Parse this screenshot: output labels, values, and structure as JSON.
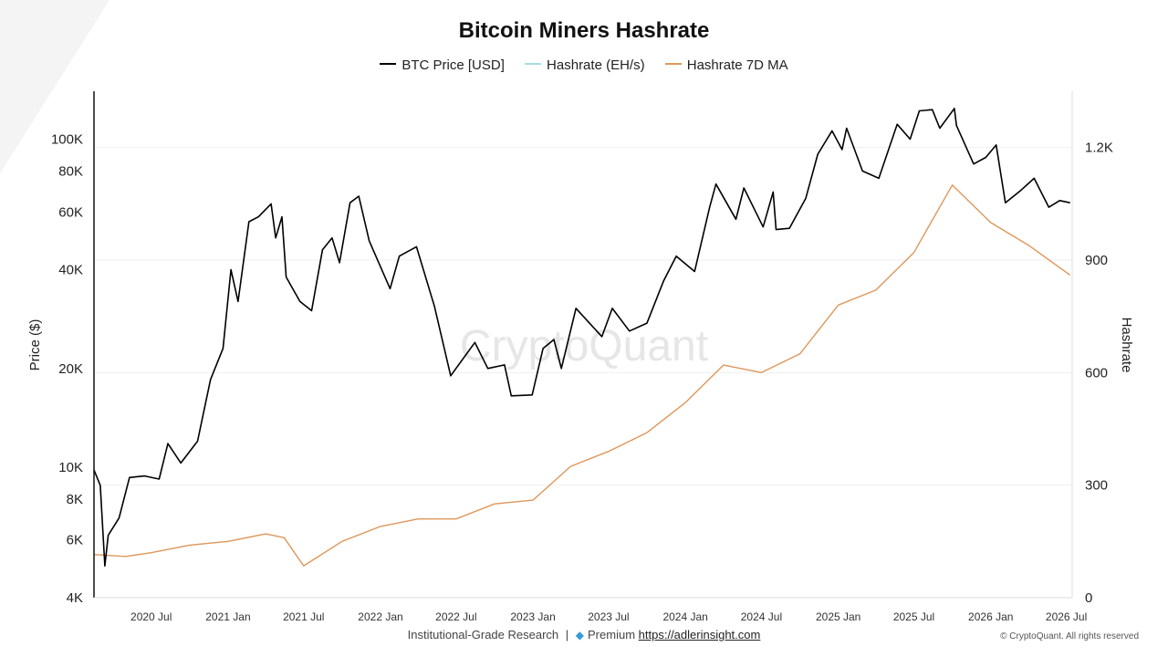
{
  "chart_data": {
    "type": "line",
    "title": "Bitcoin Miners Hashrate",
    "ylabel_left": "Price ($)",
    "ylabel_right": "Hashrate",
    "y_left_scale": "log",
    "y_left_range": [
      4000,
      140000
    ],
    "y_left_ticks": [
      {
        "v": 4000,
        "label": "4K"
      },
      {
        "v": 6000,
        "label": "6K"
      },
      {
        "v": 8000,
        "label": "8K"
      },
      {
        "v": 10000,
        "label": "10K"
      },
      {
        "v": 20000,
        "label": "20K"
      },
      {
        "v": 40000,
        "label": "40K"
      },
      {
        "v": 60000,
        "label": "60K"
      },
      {
        "v": 80000,
        "label": "80K"
      },
      {
        "v": 100000,
        "label": "100K"
      }
    ],
    "y_right_range": [
      0,
      1350
    ],
    "y_right_ticks": [
      {
        "v": 0,
        "label": "0"
      },
      {
        "v": 300,
        "label": "300"
      },
      {
        "v": 600,
        "label": "600"
      },
      {
        "v": 900,
        "label": "900"
      },
      {
        "v": 1200,
        "label": "1.2K"
      }
    ],
    "x_range": [
      "2020-02-15",
      "2026-07-15"
    ],
    "x_ticks": [
      {
        "date": "2020-07-01",
        "label": "2020 Jul"
      },
      {
        "date": "2021-01-01",
        "label": "2021 Jan"
      },
      {
        "date": "2021-07-01",
        "label": "2021 Jul"
      },
      {
        "date": "2022-01-01",
        "label": "2022 Jan"
      },
      {
        "date": "2022-07-01",
        "label": "2022 Jul"
      },
      {
        "date": "2023-01-01",
        "label": "2023 Jan"
      },
      {
        "date": "2023-07-01",
        "label": "2023 Jul"
      },
      {
        "date": "2024-01-01",
        "label": "2024 Jan"
      },
      {
        "date": "2024-07-01",
        "label": "2024 Jul"
      },
      {
        "date": "2025-01-01",
        "label": "2025 Jan"
      },
      {
        "date": "2025-07-01",
        "label": "2025 Jul"
      },
      {
        "date": "2026-01-01",
        "label": "2026 Jan"
      },
      {
        "date": "2026-07-01",
        "label": "2026 Jul"
      }
    ],
    "grid": {
      "horizontal": true,
      "vertical": false
    },
    "legend_position": "top-center",
    "series": [
      {
        "name": "BTC Price [USD]",
        "axis": "left",
        "color": "#000000",
        "points": [
          [
            "2020-02-15",
            9800
          ],
          [
            "2020-03-01",
            8800
          ],
          [
            "2020-03-12",
            5000
          ],
          [
            "2020-03-20",
            6200
          ],
          [
            "2020-04-15",
            7000
          ],
          [
            "2020-05-10",
            9300
          ],
          [
            "2020-06-15",
            9400
          ],
          [
            "2020-07-20",
            9200
          ],
          [
            "2020-08-10",
            11800
          ],
          [
            "2020-09-10",
            10300
          ],
          [
            "2020-10-20",
            12000
          ],
          [
            "2020-11-20",
            18500
          ],
          [
            "2020-12-20",
            23000
          ],
          [
            "2021-01-08",
            40000
          ],
          [
            "2021-01-25",
            32000
          ],
          [
            "2021-02-20",
            56000
          ],
          [
            "2021-03-15",
            58000
          ],
          [
            "2021-04-14",
            63500
          ],
          [
            "2021-04-25",
            50000
          ],
          [
            "2021-05-10",
            58000
          ],
          [
            "2021-05-20",
            38000
          ],
          [
            "2021-06-22",
            32000
          ],
          [
            "2021-07-20",
            30000
          ],
          [
            "2021-08-15",
            46000
          ],
          [
            "2021-09-07",
            50000
          ],
          [
            "2021-09-25",
            42000
          ],
          [
            "2021-10-20",
            64000
          ],
          [
            "2021-11-10",
            67000
          ],
          [
            "2021-12-05",
            49000
          ],
          [
            "2022-01-24",
            35000
          ],
          [
            "2022-02-15",
            44000
          ],
          [
            "2022-03-28",
            47000
          ],
          [
            "2022-05-10",
            31000
          ],
          [
            "2022-06-18",
            19000
          ],
          [
            "2022-08-15",
            24000
          ],
          [
            "2022-09-15",
            20000
          ],
          [
            "2022-10-25",
            20500
          ],
          [
            "2022-11-10",
            16500
          ],
          [
            "2022-12-30",
            16600
          ],
          [
            "2023-01-25",
            23000
          ],
          [
            "2023-02-20",
            24500
          ],
          [
            "2023-03-10",
            20000
          ],
          [
            "2023-04-14",
            30500
          ],
          [
            "2023-06-15",
            25000
          ],
          [
            "2023-07-10",
            30500
          ],
          [
            "2023-08-20",
            26000
          ],
          [
            "2023-10-01",
            27500
          ],
          [
            "2023-11-10",
            37000
          ],
          [
            "2023-12-10",
            44000
          ],
          [
            "2024-01-23",
            39500
          ],
          [
            "2024-02-28",
            62000
          ],
          [
            "2024-03-14",
            73000
          ],
          [
            "2024-05-01",
            57000
          ],
          [
            "2024-05-20",
            71000
          ],
          [
            "2024-07-05",
            54000
          ],
          [
            "2024-07-29",
            69000
          ],
          [
            "2024-08-05",
            53000
          ],
          [
            "2024-09-06",
            53500
          ],
          [
            "2024-10-15",
            66000
          ],
          [
            "2024-11-13",
            90000
          ],
          [
            "2024-12-17",
            106000
          ],
          [
            "2025-01-10",
            93000
          ],
          [
            "2025-01-21",
            108000
          ],
          [
            "2025-02-28",
            80000
          ],
          [
            "2025-04-08",
            76000
          ],
          [
            "2025-05-22",
            111000
          ],
          [
            "2025-06-22",
            100000
          ],
          [
            "2025-07-14",
            122000
          ],
          [
            "2025-08-14",
            123000
          ],
          [
            "2025-09-01",
            108000
          ],
          [
            "2025-10-06",
            124000
          ],
          [
            "2025-10-11",
            110000
          ],
          [
            "2025-11-21",
            84000
          ],
          [
            "2025-12-20",
            88000
          ],
          [
            "2026-01-14",
            96000
          ],
          [
            "2026-02-05",
            64000
          ],
          [
            "2026-03-15",
            70000
          ],
          [
            "2026-04-15",
            76000
          ],
          [
            "2026-05-20",
            62000
          ],
          [
            "2026-06-15",
            65000
          ],
          [
            "2026-07-10",
            64000
          ]
        ]
      },
      {
        "name": "Hashrate (EH/s)",
        "axis": "right",
        "color": "#a8dbe8",
        "points": [
          [
            "2020-02-15",
            115
          ],
          [
            "2020-05-01",
            110
          ],
          [
            "2020-07-01",
            120
          ],
          [
            "2020-10-01",
            140
          ],
          [
            "2021-01-01",
            150
          ],
          [
            "2021-04-01",
            170
          ],
          [
            "2021-05-15",
            160
          ],
          [
            "2021-07-01",
            85
          ],
          [
            "2021-10-01",
            150
          ],
          [
            "2022-01-01",
            190
          ],
          [
            "2022-04-01",
            210
          ],
          [
            "2022-07-01",
            210
          ],
          [
            "2022-10-01",
            250
          ],
          [
            "2023-01-01",
            260
          ],
          [
            "2023-04-01",
            350
          ],
          [
            "2023-07-01",
            390
          ],
          [
            "2023-10-01",
            440
          ],
          [
            "2024-01-01",
            520
          ],
          [
            "2024-04-01",
            620
          ],
          [
            "2024-07-01",
            600
          ],
          [
            "2024-10-01",
            650
          ],
          [
            "2025-01-01",
            780
          ],
          [
            "2025-04-01",
            820
          ],
          [
            "2025-07-01",
            920
          ],
          [
            "2025-10-01",
            1100
          ],
          [
            "2026-01-01",
            1000
          ],
          [
            "2026-04-01",
            940
          ],
          [
            "2026-07-10",
            860
          ]
        ]
      },
      {
        "name": "Hashrate 7D MA",
        "axis": "right",
        "color": "#e0975a",
        "points": [
          [
            "2020-02-15",
            115
          ],
          [
            "2020-05-01",
            110
          ],
          [
            "2020-07-01",
            120
          ],
          [
            "2020-10-01",
            140
          ],
          [
            "2021-01-01",
            150
          ],
          [
            "2021-04-01",
            170
          ],
          [
            "2021-05-15",
            160
          ],
          [
            "2021-07-01",
            85
          ],
          [
            "2021-10-01",
            150
          ],
          [
            "2022-01-01",
            190
          ],
          [
            "2022-04-01",
            210
          ],
          [
            "2022-07-01",
            210
          ],
          [
            "2022-10-01",
            250
          ],
          [
            "2023-01-01",
            260
          ],
          [
            "2023-04-01",
            350
          ],
          [
            "2023-07-01",
            390
          ],
          [
            "2023-10-01",
            440
          ],
          [
            "2024-01-01",
            520
          ],
          [
            "2024-04-01",
            620
          ],
          [
            "2024-07-01",
            600
          ],
          [
            "2024-10-01",
            650
          ],
          [
            "2025-01-01",
            780
          ],
          [
            "2025-04-01",
            820
          ],
          [
            "2025-07-01",
            920
          ],
          [
            "2025-10-01",
            1100
          ],
          [
            "2026-01-01",
            1000
          ],
          [
            "2026-04-01",
            940
          ],
          [
            "2026-07-10",
            860
          ]
        ]
      }
    ]
  },
  "watermark": "CryptoQuant",
  "footer": {
    "research_label": "Institutional-Grade Research",
    "separator": "|",
    "premium_label": "Premium",
    "link_text": "https://adlerinsight.com",
    "copyright": "© CryptoQuant. All rights reserved"
  }
}
